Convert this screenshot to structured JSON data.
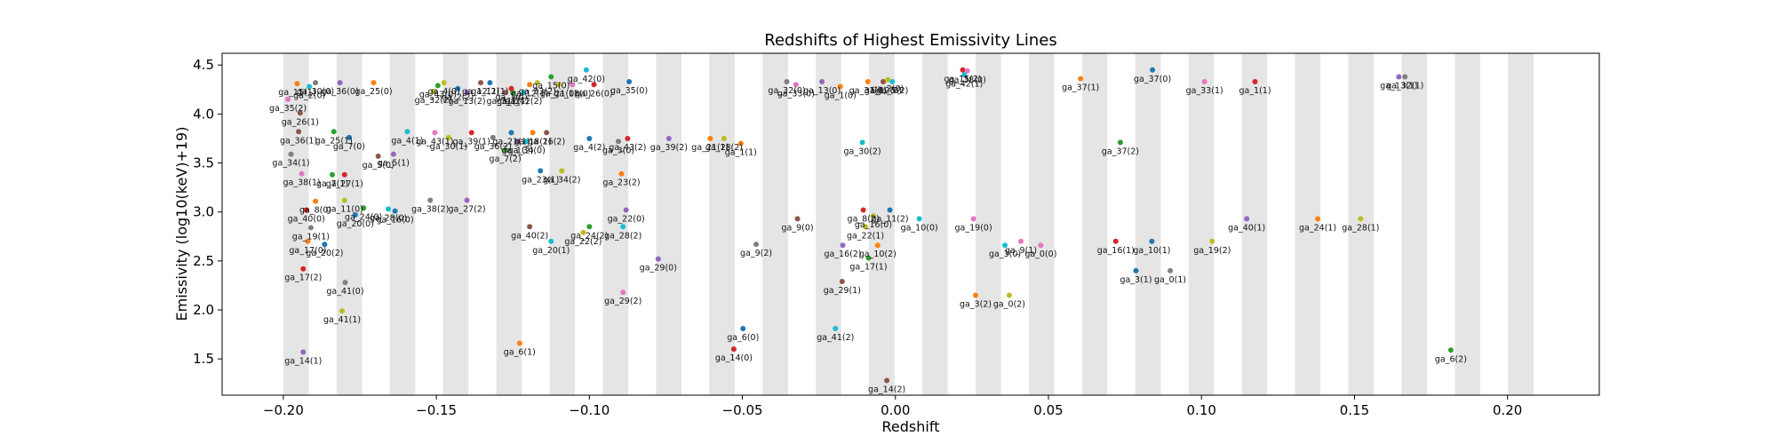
{
  "chart_data": {
    "type": "scatter",
    "title": "Redshifts of Highest Emissivity Lines",
    "xlabel": "Redshift",
    "ylabel": "Emissivity (log10(keV)+19)",
    "xlim": [
      -0.22,
      0.23
    ],
    "ylim": [
      1.13,
      4.62
    ],
    "xticks": [
      -0.2,
      -0.15,
      -0.1,
      -0.05,
      0.0,
      0.05,
      0.1,
      0.15,
      0.2
    ],
    "xtick_labels": [
      "−0.20",
      "−0.15",
      "−0.10",
      "−0.05",
      "0.00",
      "0.05",
      "0.10",
      "0.15",
      "0.20"
    ],
    "yticks": [
      1.5,
      2.0,
      2.5,
      3.0,
      3.5,
      4.0,
      4.5
    ],
    "ytick_labels": [
      "1.5",
      "2.0",
      "2.5",
      "3.0",
      "3.5",
      "4.0",
      "4.5"
    ],
    "bands": [
      [
        -0.2,
        -0.1917
      ],
      [
        -0.1826,
        -0.1743
      ],
      [
        -0.1652,
        -0.1569
      ],
      [
        -0.1478,
        -0.1395
      ],
      [
        -0.1304,
        -0.1221
      ],
      [
        -0.113,
        -0.1047
      ],
      [
        -0.0956,
        -0.0873
      ],
      [
        -0.0782,
        -0.0699
      ],
      [
        -0.0608,
        -0.0525
      ],
      [
        -0.0434,
        -0.0351
      ],
      [
        -0.026,
        -0.0177
      ],
      [
        -0.0086,
        -0.0003
      ],
      [
        0.0088,
        0.0171
      ],
      [
        0.0262,
        0.0345
      ],
      [
        0.0436,
        0.0519
      ],
      [
        0.061,
        0.0693
      ],
      [
        0.0784,
        0.0867
      ],
      [
        0.0958,
        0.1041
      ],
      [
        0.1132,
        0.1215
      ],
      [
        0.1306,
        0.1389
      ],
      [
        0.148,
        0.1563
      ],
      [
        0.1654,
        0.1737
      ],
      [
        0.1828,
        0.1911
      ],
      [
        0.2002,
        0.2085
      ]
    ],
    "band_color": "#e5e5e5",
    "points": [
      {
        "label": "ga_14(1)",
        "x": -0.1935,
        "y": 1.57,
        "color": "#9467bd"
      },
      {
        "label": "ga_6(1)",
        "x": -0.1228,
        "y": 1.66,
        "color": "#ff7f0e"
      },
      {
        "label": "ga_6(0)",
        "x": -0.0498,
        "y": 1.81,
        "color": "#1f77b4"
      },
      {
        "label": "ga_14(0)",
        "x": -0.0528,
        "y": 1.6,
        "color": "#d62728"
      },
      {
        "label": "ga_41(2)",
        "x": -0.0196,
        "y": 1.81,
        "color": "#17becf"
      },
      {
        "label": "ga_14(2)",
        "x": -0.0028,
        "y": 1.28,
        "color": "#8c564b"
      },
      {
        "label": "ga_6(2)",
        "x": 0.1815,
        "y": 1.59,
        "color": "#2ca02c"
      },
      {
        "label": "ga_41(1)",
        "x": -0.1808,
        "y": 1.99,
        "color": "#bcbd22"
      },
      {
        "label": "ga_41(0)",
        "x": -0.1798,
        "y": 2.28,
        "color": "#7f7f7f"
      },
      {
        "label": "ga_17(2)",
        "x": -0.1935,
        "y": 2.42,
        "color": "#d62728"
      },
      {
        "label": "ga_29(2)",
        "x": -0.089,
        "y": 2.18,
        "color": "#e377c2"
      },
      {
        "label": "ga_29(1)",
        "x": -0.0174,
        "y": 2.29,
        "color": "#8c564b"
      },
      {
        "label": "ga_3(2)",
        "x": 0.0262,
        "y": 2.15,
        "color": "#ff7f0e"
      },
      {
        "label": "ga_0(2)",
        "x": 0.0372,
        "y": 2.15,
        "color": "#bcbd22"
      },
      {
        "label": "ga_3(1)",
        "x": 0.0786,
        "y": 2.4,
        "color": "#1f77b4"
      },
      {
        "label": "ga_0(1)",
        "x": 0.0898,
        "y": 2.4,
        "color": "#7f7f7f"
      },
      {
        "label": "ga_17(0)",
        "x": -0.192,
        "y": 2.7,
        "color": "#ff7f0e"
      },
      {
        "label": "ga_20(2)",
        "x": -0.1865,
        "y": 2.67,
        "color": "#1f77b4"
      },
      {
        "label": "ga_19(1)",
        "x": -0.191,
        "y": 2.84,
        "color": "#7f7f7f"
      },
      {
        "label": "ga_40(0)",
        "x": -0.1925,
        "y": 3.02,
        "color": "#d62728"
      },
      {
        "label": "ga_8(0)",
        "x": -0.1895,
        "y": 3.11,
        "color": "#ff7f0e"
      },
      {
        "label": "ga_11(0)",
        "x": -0.18,
        "y": 3.12,
        "color": "#bcbd22"
      },
      {
        "label": "ga_20(0)",
        "x": -0.1765,
        "y": 2.97,
        "color": "#1f77b4"
      },
      {
        "label": "ga_24(0)",
        "x": -0.1738,
        "y": 3.04,
        "color": "#2ca02c"
      },
      {
        "label": "ga_28(0)",
        "x": -0.1657,
        "y": 3.03,
        "color": "#17becf"
      },
      {
        "label": "ga_16(0)",
        "x": -0.1635,
        "y": 3.01,
        "color": "#1f77b4"
      },
      {
        "label": "ga_38(2)",
        "x": -0.152,
        "y": 3.12,
        "color": "#7f7f7f"
      },
      {
        "label": "ga_27(2)",
        "x": -0.14,
        "y": 3.12,
        "color": "#9467bd"
      },
      {
        "label": "ga_40(2)",
        "x": -0.1195,
        "y": 2.85,
        "color": "#8c564b"
      },
      {
        "label": "ga_20(1)",
        "x": -0.1125,
        "y": 2.7,
        "color": "#17becf"
      },
      {
        "label": "ga_24(2)",
        "x": -0.1,
        "y": 2.85,
        "color": "#2ca02c"
      },
      {
        "label": "ga_22(2)",
        "x": -0.102,
        "y": 2.79,
        "color": "#bcbd22"
      },
      {
        "label": "ga_28(2)",
        "x": -0.089,
        "y": 2.85,
        "color": "#17becf"
      },
      {
        "label": "ga_22(0)",
        "x": -0.088,
        "y": 3.02,
        "color": "#9467bd"
      },
      {
        "label": "ga_29(0)",
        "x": -0.0775,
        "y": 2.52,
        "color": "#9467bd"
      },
      {
        "label": "ga_9(2)",
        "x": -0.0455,
        "y": 2.67,
        "color": "#7f7f7f"
      },
      {
        "label": "ga_9(0)",
        "x": -0.032,
        "y": 2.93,
        "color": "#8c564b"
      },
      {
        "label": "ga_8(2)",
        "x": -0.0105,
        "y": 3.02,
        "color": "#d62728"
      },
      {
        "label": "ga_11(2)",
        "x": -0.0018,
        "y": 3.02,
        "color": "#1f77b4"
      },
      {
        "label": "ga_16(0)",
        "x": -0.0072,
        "y": 2.96,
        "color": "#bcbd22"
      },
      {
        "label": "ga_22(1)",
        "x": -0.0098,
        "y": 2.85,
        "color": "#bcbd22"
      },
      {
        "label": "ga_16(2)",
        "x": -0.0172,
        "y": 2.66,
        "color": "#9467bd"
      },
      {
        "label": "ga_10(2)",
        "x": -0.0058,
        "y": 2.66,
        "color": "#ff7f0e"
      },
      {
        "label": "ga_17(1)",
        "x": -0.0088,
        "y": 2.53,
        "color": "#2ca02c"
      },
      {
        "label": "ga_10(0)",
        "x": 0.0078,
        "y": 2.93,
        "color": "#17becf"
      },
      {
        "label": "ga_19(0)",
        "x": 0.0255,
        "y": 2.93,
        "color": "#e377c2"
      },
      {
        "label": "ga_3(0)",
        "x": 0.0358,
        "y": 2.66,
        "color": "#17becf"
      },
      {
        "label": "ga_9(1)",
        "x": 0.041,
        "y": 2.7,
        "color": "#e377c2"
      },
      {
        "label": "ga_0(0)",
        "x": 0.0475,
        "y": 2.66,
        "color": "#e377c2"
      },
      {
        "label": "ga_16(1)",
        "x": 0.072,
        "y": 2.7,
        "color": "#d62728"
      },
      {
        "label": "ga_10(1)",
        "x": 0.0838,
        "y": 2.7,
        "color": "#1f77b4"
      },
      {
        "label": "ga_19(2)",
        "x": 0.1035,
        "y": 2.7,
        "color": "#bcbd22"
      },
      {
        "label": "ga_40(1)",
        "x": 0.1148,
        "y": 2.93,
        "color": "#9467bd"
      },
      {
        "label": "ga_24(1)",
        "x": 0.138,
        "y": 2.93,
        "color": "#ff7f0e"
      },
      {
        "label": "ga_28(1)",
        "x": 0.152,
        "y": 2.93,
        "color": "#bcbd22"
      },
      {
        "label": "ga_34(1)",
        "x": -0.1975,
        "y": 3.59,
        "color": "#7f7f7f"
      },
      {
        "label": "ga_38(1)",
        "x": -0.194,
        "y": 3.39,
        "color": "#e377c2"
      },
      {
        "label": "ga_7(1)",
        "x": -0.184,
        "y": 3.38,
        "color": "#2ca02c"
      },
      {
        "label": "ga_27(1)",
        "x": -0.18,
        "y": 3.38,
        "color": "#d62728"
      },
      {
        "label": "ga_36(1)",
        "x": -0.195,
        "y": 3.82,
        "color": "#8c564b"
      },
      {
        "label": "ga_25(1)",
        "x": -0.1835,
        "y": 3.82,
        "color": "#2ca02c"
      },
      {
        "label": "ga_7(0)",
        "x": -0.1785,
        "y": 3.76,
        "color": "#1f77b4"
      },
      {
        "label": "ga_5(0)",
        "x": -0.169,
        "y": 3.57,
        "color": "#8c564b"
      },
      {
        "label": "ga_5(1)",
        "x": -0.164,
        "y": 3.59,
        "color": "#9467bd"
      },
      {
        "label": "ga_4(1)",
        "x": -0.1595,
        "y": 3.82,
        "color": "#17becf"
      },
      {
        "label": "ga_43(1)",
        "x": -0.1505,
        "y": 3.81,
        "color": "#e377c2"
      },
      {
        "label": "ga_30(1)",
        "x": -0.146,
        "y": 3.76,
        "color": "#bcbd22"
      },
      {
        "label": "ga_39(1)",
        "x": -0.1385,
        "y": 3.81,
        "color": "#d62728"
      },
      {
        "label": "ga_36(2)",
        "x": -0.1315,
        "y": 3.76,
        "color": "#7f7f7f"
      },
      {
        "label": "ga_7(2)",
        "x": -0.1275,
        "y": 3.63,
        "color": "#2ca02c"
      },
      {
        "label": "ga_21(1)",
        "x": -0.1255,
        "y": 3.81,
        "color": "#1f77b4"
      },
      {
        "label": "ga_18(1)",
        "x": -0.1185,
        "y": 3.81,
        "color": "#ff7f0e"
      },
      {
        "label": "ga_26(2)",
        "x": -0.114,
        "y": 3.81,
        "color": "#8c564b"
      },
      {
        "label": "ga_1(2)",
        "x": -0.1235,
        "y": 3.72,
        "color": "#9467bd"
      },
      {
        "label": "ga_34(0)",
        "x": -0.1205,
        "y": 3.72,
        "color": "#17becf"
      },
      {
        "label": "ga_23(1)",
        "x": -0.116,
        "y": 3.42,
        "color": "#1f77b4"
      },
      {
        "label": "ga_34(2)",
        "x": -0.109,
        "y": 3.42,
        "color": "#bcbd22"
      },
      {
        "label": "ga_4(2)",
        "x": -0.1,
        "y": 3.75,
        "color": "#1f77b4"
      },
      {
        "label": "ga_43(2)",
        "x": -0.0875,
        "y": 3.75,
        "color": "#d62728"
      },
      {
        "label": "ga_3(0)",
        "x": -0.0905,
        "y": 3.72,
        "color": "#7f7f7f"
      },
      {
        "label": "ga_23(2)",
        "x": -0.0895,
        "y": 3.39,
        "color": "#ff7f0e"
      },
      {
        "label": "ga_39(2)",
        "x": -0.074,
        "y": 3.75,
        "color": "#9467bd"
      },
      {
        "label": "ga_21(2)",
        "x": -0.0605,
        "y": 3.75,
        "color": "#ff7f0e"
      },
      {
        "label": "ga_18(2)",
        "x": -0.056,
        "y": 3.75,
        "color": "#bcbd22"
      },
      {
        "label": "ga_1(1)",
        "x": -0.0505,
        "y": 3.7,
        "color": "#ff7f0e"
      },
      {
        "label": "ga_30(2)",
        "x": -0.0108,
        "y": 3.71,
        "color": "#17becf"
      },
      {
        "label": "ga_37(2)",
        "x": 0.0735,
        "y": 3.71,
        "color": "#2ca02c"
      },
      {
        "label": "ga_35(2)",
        "x": -0.1985,
        "y": 4.15,
        "color": "#e377c2"
      },
      {
        "label": "ga_26(1)",
        "x": -0.1945,
        "y": 4.01,
        "color": "#8c564b"
      },
      {
        "label": "ga_15(1)",
        "x": -0.1955,
        "y": 4.31,
        "color": "#ff7f0e"
      },
      {
        "label": "ga_2(0)",
        "x": -0.1915,
        "y": 4.28,
        "color": "#17becf"
      },
      {
        "label": "ga_30(0)",
        "x": -0.1895,
        "y": 4.32,
        "color": "#7f7f7f"
      },
      {
        "label": "ga_36(0)",
        "x": -0.1815,
        "y": 4.32,
        "color": "#9467bd"
      },
      {
        "label": "ga_25(0)",
        "x": -0.1705,
        "y": 4.32,
        "color": "#ff7f0e"
      },
      {
        "label": "ga_32(2)",
        "x": -0.151,
        "y": 4.23,
        "color": "#bcbd22"
      },
      {
        "label": "ga_43(0)",
        "x": -0.1495,
        "y": 4.29,
        "color": "#2ca02c"
      },
      {
        "label": "ga_4(0)",
        "x": -0.1475,
        "y": 4.32,
        "color": "#bcbd22"
      },
      {
        "label": "ga_2(2)",
        "x": -0.143,
        "y": 4.26,
        "color": "#1f77b4"
      },
      {
        "label": "ga_13(2)",
        "x": -0.14,
        "y": 4.22,
        "color": "#9467bd"
      },
      {
        "label": "ga_12(2)",
        "x": -0.1355,
        "y": 4.32,
        "color": "#8c564b"
      },
      {
        "label": "ga_11(1)",
        "x": -0.1325,
        "y": 4.32,
        "color": "#1f77b4"
      },
      {
        "label": "ga_31(2)",
        "x": -0.1275,
        "y": 4.22,
        "color": "#8c564b"
      },
      {
        "label": "ga_2(1)",
        "x": -0.125,
        "y": 4.22,
        "color": "#2ca02c"
      },
      {
        "label": "ga_1(0)",
        "x": -0.1255,
        "y": 4.26,
        "color": "#d62728"
      },
      {
        "label": "ga_42(2)",
        "x": -0.1215,
        "y": 4.22,
        "color": "#17becf"
      },
      {
        "label": "ga_12(1)",
        "x": -0.1195,
        "y": 4.3,
        "color": "#ff7f0e"
      },
      {
        "label": "ga_33(2)",
        "x": -0.117,
        "y": 4.32,
        "color": "#bcbd22"
      },
      {
        "label": "ga_15(0)",
        "x": -0.1125,
        "y": 4.38,
        "color": "#2ca02c"
      },
      {
        "label": "ga_21(0)",
        "x": -0.11,
        "y": 4.3,
        "color": "#bcbd22"
      },
      {
        "label": "ga_18(0)",
        "x": -0.1055,
        "y": 4.3,
        "color": "#e377c2"
      },
      {
        "label": "ga_42(0)",
        "x": -0.101,
        "y": 4.45,
        "color": "#17becf"
      },
      {
        "label": "ga_26(0)",
        "x": -0.0985,
        "y": 4.3,
        "color": "#d62728"
      },
      {
        "label": "ga_35(0)",
        "x": -0.087,
        "y": 4.33,
        "color": "#1f77b4"
      },
      {
        "label": "ga_32(0)",
        "x": -0.0355,
        "y": 4.33,
        "color": "#7f7f7f"
      },
      {
        "label": "ga_33(0)",
        "x": -0.0325,
        "y": 4.3,
        "color": "#e377c2"
      },
      {
        "label": "ga_13(0)",
        "x": -0.024,
        "y": 4.33,
        "color": "#9467bd"
      },
      {
        "label": "ga_1(0)",
        "x": -0.018,
        "y": 4.28,
        "color": "#ff7f0e"
      },
      {
        "label": "ga_31(0)",
        "x": -0.009,
        "y": 4.33,
        "color": "#ff7f0e"
      },
      {
        "label": "ga_12(0)",
        "x": -0.004,
        "y": 4.33,
        "color": "#8c564b"
      },
      {
        "label": "ga_2(0)",
        "x": -0.0025,
        "y": 4.35,
        "color": "#bcbd22"
      },
      {
        "label": "ga_5(2)",
        "x": -0.001,
        "y": 4.33,
        "color": "#17becf"
      },
      {
        "label": "ga_15(2)",
        "x": 0.022,
        "y": 4.45,
        "color": "#d62728"
      },
      {
        "label": "ga_38(0)",
        "x": 0.0235,
        "y": 4.44,
        "color": "#e377c2"
      },
      {
        "label": "ga_42(1)",
        "x": 0.0225,
        "y": 4.4,
        "color": "#17becf"
      },
      {
        "label": "ga_37(1)",
        "x": 0.0605,
        "y": 4.36,
        "color": "#ff7f0e"
      },
      {
        "label": "ga_37(0)",
        "x": 0.084,
        "y": 4.45,
        "color": "#1f77b4"
      },
      {
        "label": "ga_33(1)",
        "x": 0.101,
        "y": 4.33,
        "color": "#e377c2"
      },
      {
        "label": "ga_1(1)",
        "x": 0.1175,
        "y": 4.33,
        "color": "#d62728"
      },
      {
        "label": "ga_13(1)",
        "x": 0.1645,
        "y": 4.38,
        "color": "#9467bd"
      },
      {
        "label": "ga_32(1)",
        "x": 0.1665,
        "y": 4.38,
        "color": "#7f7f7f"
      }
    ]
  }
}
